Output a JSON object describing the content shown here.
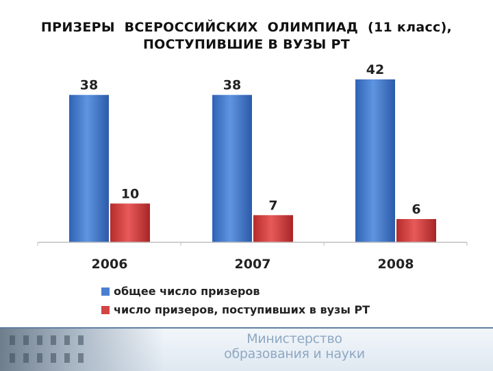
{
  "title_lines": [
    "ПРИЗЕРЫ  ВСЕРОССИЙСКИХ  ОЛИМПИАД  (11 класс),",
    "ПОСТУПИВШИЕ В ВУЗЫ РТ"
  ],
  "chart_data": {
    "type": "bar",
    "title": "ПРИЗЕРЫ  ВСЕРОССИЙСКИХ  ОЛИМПИАД  (11 класс), ПОСТУПИВШИЕ В ВУЗЫ РТ",
    "categories": [
      "2006",
      "2007",
      "2008"
    ],
    "series": [
      {
        "name": "общее число призеров",
        "values": [
          38,
          38,
          42
        ],
        "color": "#4a7fcf"
      },
      {
        "name": "число призеров, поступивших в вузы РТ",
        "values": [
          10,
          7,
          6
        ],
        "color": "#d24545"
      }
    ],
    "ylim": [
      0,
      42
    ],
    "grid": false,
    "data_labels": true,
    "legend_position": "bottom-left"
  },
  "footer": {
    "ministry_lines": [
      "Министерство",
      "образования и науки"
    ]
  }
}
